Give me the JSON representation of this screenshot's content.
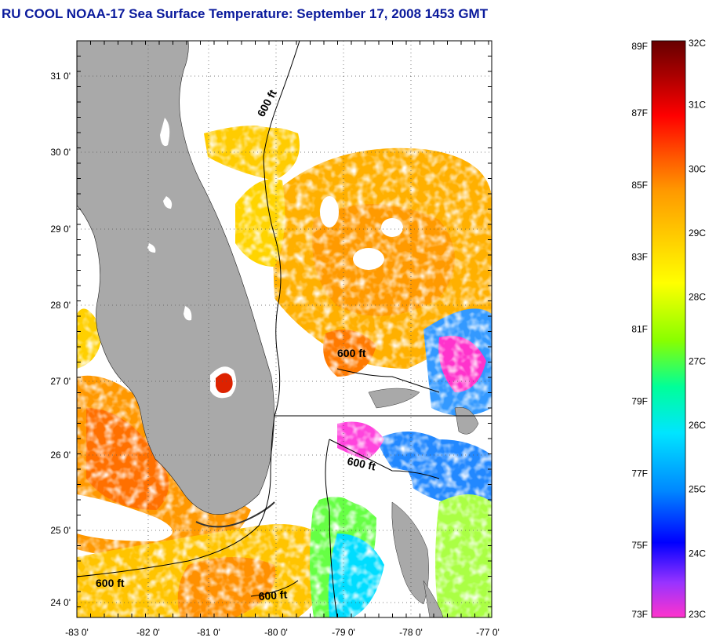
{
  "title": "RU COOL  NOAA-17  Sea Surface Temperature:  September 17, 2008 1453 GMT",
  "map": {
    "lon_ticks": [
      "-83 0'",
      "-82 0'",
      "-81 0'",
      "-80 0'",
      "-79 0'",
      "-78 0'",
      "-77 0'"
    ],
    "lat_ticks": [
      "31 0'",
      "30 0'",
      "29 0'",
      "28 0'",
      "27 0'",
      "26 0'",
      "25 0'",
      "24 0'"
    ],
    "contour_labels": [
      "600 ft",
      "600 ft",
      "600 ft",
      "600 ft",
      "600 ft"
    ],
    "colors": {
      "land": "#a9a9a9",
      "cloud": "#ffffff",
      "contour": "#000000"
    }
  },
  "colorbar": {
    "fahrenheit": [
      "89F",
      "87F",
      "85F",
      "83F",
      "81F",
      "79F",
      "77F",
      "75F",
      "73F"
    ],
    "celsius": [
      "32C",
      "31C",
      "30C",
      "29C",
      "28C",
      "27C",
      "26C",
      "25C",
      "24C",
      "23C"
    ],
    "colors": [
      "#ff33cc",
      "#9933ff",
      "#0000ff",
      "#0088ff",
      "#00e5ff",
      "#00ff99",
      "#88ff00",
      "#ffff00",
      "#ffcc00",
      "#ff9900",
      "#ff5500",
      "#ff0000",
      "#aa0000",
      "#660000"
    ]
  }
}
